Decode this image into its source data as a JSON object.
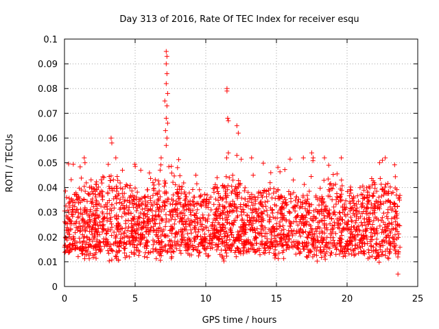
{
  "chart_data": {
    "type": "scatter",
    "title": "Day 313 of 2016, Rate Of TEC Index for receiver esqu",
    "xlabel": "GPS time / hours",
    "ylabel": "ROTI / TECUs",
    "xlim": [
      0,
      25
    ],
    "ylim": [
      0,
      0.1
    ],
    "x_ticks": [
      0,
      5,
      10,
      15,
      20,
      25
    ],
    "y_ticks": [
      0,
      0.01,
      0.02,
      0.03,
      0.04,
      0.05,
      0.06,
      0.07,
      0.08,
      0.09,
      0.1
    ],
    "x_tick_labels": [
      "0",
      "5",
      "10",
      "15",
      "20",
      "25"
    ],
    "y_tick_labels": [
      "0",
      "0.01",
      "0.02",
      "0.03",
      "0.04",
      "0.05",
      "0.06",
      "0.07",
      "0.08",
      "0.09",
      "0.1"
    ],
    "grid": true,
    "marker": "+",
    "color": "#ff0000",
    "series": [
      {
        "name": "ROTI",
        "x_range": [
          0,
          23.75
        ],
        "typical_range": [
          0.008,
          0.035
        ],
        "median": 0.018,
        "notable_points": [
          {
            "x": 7.2,
            "y": 0.095
          },
          {
            "x": 7.25,
            "y": 0.093
          },
          {
            "x": 7.2,
            "y": 0.09
          },
          {
            "x": 7.25,
            "y": 0.086
          },
          {
            "x": 7.2,
            "y": 0.082
          },
          {
            "x": 7.3,
            "y": 0.078
          },
          {
            "x": 7.1,
            "y": 0.075
          },
          {
            "x": 7.25,
            "y": 0.073
          },
          {
            "x": 7.2,
            "y": 0.068
          },
          {
            "x": 7.3,
            "y": 0.066
          },
          {
            "x": 7.15,
            "y": 0.063
          },
          {
            "x": 7.25,
            "y": 0.06
          },
          {
            "x": 7.2,
            "y": 0.057
          },
          {
            "x": 11.5,
            "y": 0.08
          },
          {
            "x": 11.5,
            "y": 0.079
          },
          {
            "x": 11.55,
            "y": 0.068
          },
          {
            "x": 11.6,
            "y": 0.067
          },
          {
            "x": 12.2,
            "y": 0.065
          },
          {
            "x": 12.3,
            "y": 0.062
          },
          {
            "x": 11.6,
            "y": 0.054
          },
          {
            "x": 12.2,
            "y": 0.053
          },
          {
            "x": 3.3,
            "y": 0.06
          },
          {
            "x": 3.35,
            "y": 0.058
          },
          {
            "x": 1.4,
            "y": 0.052
          },
          {
            "x": 1.45,
            "y": 0.05
          },
          {
            "x": 17.5,
            "y": 0.054
          },
          {
            "x": 17.6,
            "y": 0.052
          },
          {
            "x": 22.5,
            "y": 0.051
          },
          {
            "x": 22.3,
            "y": 0.05
          },
          {
            "x": 18.7,
            "y": 0.049
          },
          {
            "x": 4.1,
            "y": 0.047
          },
          {
            "x": 5.4,
            "y": 0.047
          },
          {
            "x": 14.6,
            "y": 0.046
          },
          {
            "x": 8.0,
            "y": 0.048
          },
          {
            "x": 9.3,
            "y": 0.045
          },
          {
            "x": 10.8,
            "y": 0.044
          },
          {
            "x": 0.3,
            "y": 0.03
          },
          {
            "x": 23.6,
            "y": 0.005
          }
        ]
      }
    ]
  }
}
